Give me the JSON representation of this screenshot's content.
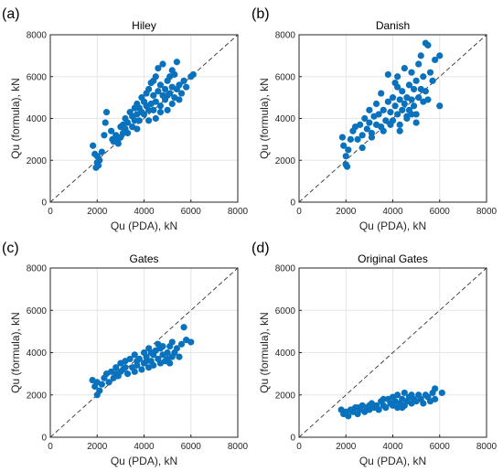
{
  "figure": {
    "background": "#ffffff",
    "point_color": "#0a72bd"
  },
  "chart_data": [
    {
      "panel_label": "(a)",
      "type": "scatter",
      "title": "Hiley",
      "xlabel": "Qu (PDA), kN",
      "ylabel": "Qu (formula), kN",
      "xlim": [
        0,
        8000
      ],
      "ylim": [
        0,
        8000
      ],
      "xticks": [
        "0",
        "2000",
        "4000",
        "6000",
        "8000"
      ],
      "yticks": [
        "0",
        "2000",
        "4000",
        "6000",
        "8000"
      ],
      "grid": true,
      "reference_line": "y = x (dashed)",
      "points": [
        [
          1820,
          2700
        ],
        [
          1900,
          2300
        ],
        [
          2000,
          2200
        ],
        [
          2000,
          1900
        ],
        [
          1950,
          1650
        ],
        [
          2050,
          1750
        ],
        [
          2100,
          2000
        ],
        [
          2200,
          2400
        ],
        [
          2300,
          3200
        ],
        [
          2350,
          3800
        ],
        [
          2400,
          4300
        ],
        [
          2600,
          3400
        ],
        [
          2650,
          3000
        ],
        [
          2700,
          2900
        ],
        [
          2800,
          3200
        ],
        [
          2900,
          3000
        ],
        [
          3000,
          3600
        ],
        [
          3000,
          3100
        ],
        [
          3100,
          3300
        ],
        [
          3100,
          3700
        ],
        [
          3200,
          3500
        ],
        [
          3200,
          4000
        ],
        [
          3300,
          3800
        ],
        [
          3400,
          4300
        ],
        [
          3500,
          3600
        ],
        [
          3500,
          4100
        ],
        [
          3600,
          4500
        ],
        [
          3600,
          3900
        ],
        [
          3700,
          4200
        ],
        [
          3700,
          4700
        ],
        [
          3800,
          3900
        ],
        [
          3800,
          4500
        ],
        [
          3900,
          4300
        ],
        [
          3900,
          5000
        ],
        [
          4000,
          4800
        ],
        [
          4000,
          4200
        ],
        [
          4100,
          5200
        ],
        [
          4100,
          4600
        ],
        [
          4200,
          4400
        ],
        [
          4200,
          5400
        ],
        [
          4300,
          4700
        ],
        [
          4300,
          5700
        ],
        [
          4400,
          4400
        ],
        [
          4400,
          5100
        ],
        [
          4500,
          6000
        ],
        [
          4500,
          4800
        ],
        [
          4600,
          6400
        ],
        [
          4600,
          5300
        ],
        [
          4700,
          4600
        ],
        [
          4700,
          5600
        ],
        [
          4800,
          5100
        ],
        [
          4800,
          6600
        ],
        [
          4900,
          4900
        ],
        [
          4900,
          5400
        ],
        [
          5000,
          5800
        ],
        [
          5000,
          4400
        ],
        [
          5100,
          5200
        ],
        [
          5100,
          6000
        ],
        [
          5200,
          5500
        ],
        [
          5200,
          4700
        ],
        [
          5300,
          6100
        ],
        [
          5300,
          5000
        ],
        [
          5400,
          5400
        ],
        [
          5400,
          6700
        ],
        [
          5500,
          5600
        ],
        [
          5500,
          4900
        ],
        [
          5600,
          5200
        ],
        [
          5700,
          5800
        ],
        [
          5800,
          5500
        ],
        [
          6000,
          6000
        ],
        [
          6100,
          6100
        ],
        [
          4500,
          4000
        ],
        [
          4200,
          3900
        ],
        [
          3700,
          3500
        ],
        [
          3300,
          3300
        ],
        [
          2900,
          2800
        ],
        [
          4700,
          4300
        ],
        [
          5000,
          5100
        ],
        [
          5200,
          6300
        ],
        [
          4400,
          5800
        ]
      ]
    },
    {
      "panel_label": "(b)",
      "type": "scatter",
      "title": "Danish",
      "xlabel": "Qu (PDA), kN",
      "ylabel": "Qu (formula), kN",
      "xlim": [
        0,
        8000
      ],
      "ylim": [
        0,
        8000
      ],
      "xticks": [
        "0",
        "2000",
        "4000",
        "6000",
        "8000"
      ],
      "yticks": [
        "0",
        "2000",
        "4000",
        "6000",
        "8000"
      ],
      "grid": true,
      "reference_line": "y = x (dashed)",
      "points": [
        [
          1850,
          3100
        ],
        [
          1900,
          2700
        ],
        [
          2000,
          2200
        ],
        [
          2000,
          1800
        ],
        [
          2050,
          1700
        ],
        [
          2100,
          2500
        ],
        [
          2200,
          3000
        ],
        [
          2300,
          3400
        ],
        [
          2400,
          3600
        ],
        [
          2500,
          3000
        ],
        [
          2600,
          3700
        ],
        [
          2700,
          3200
        ],
        [
          2800,
          4000
        ],
        [
          2900,
          3500
        ],
        [
          3000,
          3800
        ],
        [
          3000,
          4400
        ],
        [
          3100,
          3300
        ],
        [
          3200,
          4100
        ],
        [
          3300,
          3700
        ],
        [
          3300,
          4700
        ],
        [
          3400,
          4200
        ],
        [
          3500,
          5200
        ],
        [
          3500,
          3600
        ],
        [
          3600,
          4400
        ],
        [
          3700,
          3900
        ],
        [
          3800,
          4800
        ],
        [
          3800,
          6100
        ],
        [
          3900,
          4300
        ],
        [
          4000,
          5000
        ],
        [
          4000,
          3900
        ],
        [
          4100,
          4600
        ],
        [
          4100,
          5700
        ],
        [
          4200,
          4200
        ],
        [
          4200,
          6000
        ],
        [
          4300,
          4900
        ],
        [
          4300,
          3700
        ],
        [
          4400,
          4400
        ],
        [
          4400,
          5300
        ],
        [
          4500,
          4700
        ],
        [
          4500,
          6400
        ],
        [
          4600,
          4100
        ],
        [
          4600,
          5000
        ],
        [
          4700,
          5600
        ],
        [
          4700,
          4400
        ],
        [
          4800,
          4900
        ],
        [
          4800,
          6200
        ],
        [
          4900,
          4600
        ],
        [
          4900,
          5400
        ],
        [
          5000,
          5800
        ],
        [
          5000,
          4200
        ],
        [
          5100,
          5000
        ],
        [
          5100,
          6600
        ],
        [
          5200,
          5400
        ],
        [
          5200,
          7000
        ],
        [
          5300,
          4800
        ],
        [
          5300,
          6000
        ],
        [
          5400,
          7600
        ],
        [
          5400,
          5300
        ],
        [
          5500,
          7500
        ],
        [
          5500,
          4900
        ],
        [
          5600,
          6200
        ],
        [
          5700,
          5800
        ],
        [
          5800,
          6800
        ],
        [
          6000,
          7000
        ],
        [
          6000,
          4600
        ],
        [
          4300,
          3400
        ],
        [
          3900,
          3700
        ],
        [
          3600,
          3400
        ],
        [
          3100,
          3100
        ],
        [
          2700,
          2600
        ],
        [
          4800,
          4200
        ],
        [
          5000,
          3800
        ],
        [
          4600,
          4000
        ],
        [
          4200,
          5500
        ]
      ]
    },
    {
      "panel_label": "(c)",
      "type": "scatter",
      "title": "Gates",
      "xlabel": "Qu (PDA), kN",
      "ylabel": "Qu (formula), kN",
      "xlim": [
        0,
        8000
      ],
      "ylim": [
        0,
        8000
      ],
      "xticks": [
        "0",
        "2000",
        "4000",
        "6000",
        "8000"
      ],
      "yticks": [
        "0",
        "2000",
        "4000",
        "6000",
        "8000"
      ],
      "grid": true,
      "reference_line": "y = x (dashed)",
      "points": [
        [
          1800,
          2700
        ],
        [
          1900,
          2400
        ],
        [
          2000,
          2000
        ],
        [
          2000,
          2600
        ],
        [
          2100,
          2200
        ],
        [
          2200,
          2500
        ],
        [
          2300,
          2800
        ],
        [
          2400,
          3000
        ],
        [
          2500,
          2600
        ],
        [
          2600,
          3100
        ],
        [
          2700,
          2800
        ],
        [
          2800,
          3300
        ],
        [
          2900,
          2900
        ],
        [
          3000,
          3500
        ],
        [
          3000,
          3100
        ],
        [
          3100,
          3200
        ],
        [
          3200,
          3600
        ],
        [
          3300,
          3000
        ],
        [
          3400,
          3700
        ],
        [
          3500,
          3300
        ],
        [
          3600,
          3900
        ],
        [
          3700,
          3400
        ],
        [
          3800,
          3700
        ],
        [
          3900,
          3200
        ],
        [
          4000,
          4000
        ],
        [
          4000,
          3500
        ],
        [
          4100,
          3800
        ],
        [
          4200,
          3300
        ],
        [
          4200,
          4200
        ],
        [
          4300,
          3600
        ],
        [
          4400,
          3900
        ],
        [
          4400,
          3400
        ],
        [
          4500,
          4100
        ],
        [
          4600,
          3700
        ],
        [
          4600,
          4400
        ],
        [
          4700,
          3500
        ],
        [
          4800,
          3900
        ],
        [
          4800,
          4300
        ],
        [
          4900,
          3600
        ],
        [
          5000,
          4000
        ],
        [
          5000,
          3700
        ],
        [
          5100,
          4300
        ],
        [
          5200,
          3800
        ],
        [
          5200,
          4500
        ],
        [
          5300,
          4000
        ],
        [
          5400,
          4200
        ],
        [
          5500,
          3800
        ],
        [
          5600,
          4400
        ],
        [
          5700,
          5200
        ],
        [
          5800,
          4600
        ],
        [
          6000,
          4500
        ],
        [
          4300,
          4000
        ],
        [
          3700,
          3600
        ],
        [
          3200,
          3300
        ],
        [
          2800,
          3000
        ],
        [
          4700,
          4200
        ],
        [
          5100,
          3500
        ],
        [
          4100,
          3600
        ],
        [
          3600,
          3100
        ]
      ]
    },
    {
      "panel_label": "(d)",
      "type": "scatter",
      "title": "Original Gates",
      "xlabel": "Qu (PDA), kN",
      "ylabel": "Qu (formula), kN",
      "xlim": [
        0,
        8000
      ],
      "ylim": [
        0,
        8000
      ],
      "xticks": [
        "0",
        "2000",
        "4000",
        "6000",
        "8000"
      ],
      "yticks": [
        "0",
        "2000",
        "4000",
        "6000",
        "8000"
      ],
      "grid": true,
      "reference_line": "y = x (dashed)",
      "points": [
        [
          1800,
          1300
        ],
        [
          1900,
          1100
        ],
        [
          2000,
          1200
        ],
        [
          2100,
          1000
        ],
        [
          2200,
          1300
        ],
        [
          2300,
          1200
        ],
        [
          2400,
          1400
        ],
        [
          2500,
          1100
        ],
        [
          2600,
          1300
        ],
        [
          2700,
          1500
        ],
        [
          2800,
          1200
        ],
        [
          2900,
          1400
        ],
        [
          3000,
          1300
        ],
        [
          3100,
          1600
        ],
        [
          3200,
          1400
        ],
        [
          3300,
          1500
        ],
        [
          3400,
          1300
        ],
        [
          3500,
          1700
        ],
        [
          3600,
          1500
        ],
        [
          3700,
          1400
        ],
        [
          3800,
          1800
        ],
        [
          3900,
          1600
        ],
        [
          4000,
          1500
        ],
        [
          4000,
          1900
        ],
        [
          4100,
          1700
        ],
        [
          4200,
          1400
        ],
        [
          4200,
          2000
        ],
        [
          4300,
          1600
        ],
        [
          4400,
          1800
        ],
        [
          4500,
          1500
        ],
        [
          4500,
          2100
        ],
        [
          4600,
          1700
        ],
        [
          4700,
          1900
        ],
        [
          4800,
          1600
        ],
        [
          4800,
          2000
        ],
        [
          4900,
          1800
        ],
        [
          5000,
          1700
        ],
        [
          5100,
          2000
        ],
        [
          5200,
          1800
        ],
        [
          5300,
          1600
        ],
        [
          5400,
          2000
        ],
        [
          5500,
          1900
        ],
        [
          5600,
          1700
        ],
        [
          5700,
          2100
        ],
        [
          5800,
          2300
        ],
        [
          5800,
          1800
        ],
        [
          6100,
          2100
        ],
        [
          4400,
          1400
        ],
        [
          3600,
          1800
        ],
        [
          3000,
          1500
        ],
        [
          2500,
          1400
        ]
      ]
    }
  ]
}
